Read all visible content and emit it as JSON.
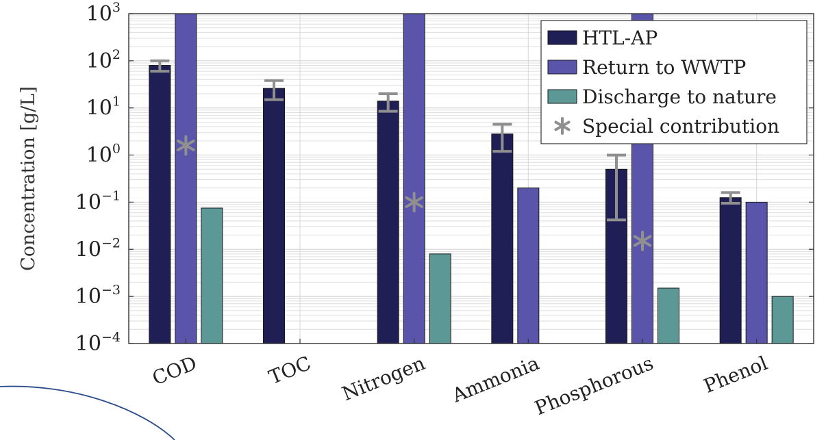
{
  "chart_data": {
    "type": "bar",
    "title": "",
    "xlabel": "",
    "ylabel": "Concentration [g/L]",
    "yscale": "log",
    "ylim": [
      0.0001,
      1000
    ],
    "ytick_base": "10",
    "ytick_exponents": [
      "−4",
      "−3",
      "−2",
      "−1",
      "0",
      "1",
      "2",
      "3"
    ],
    "grid": true,
    "legend_position": "top-right",
    "categories": [
      "COD",
      "TOC",
      "Nitrogen",
      "Ammonia",
      "Phosphorous",
      "Phenol"
    ],
    "series": [
      {
        "name": "HTL-AP",
        "color": "#1f1e55",
        "values": [
          80,
          26,
          14,
          2.8,
          0.5,
          0.125
        ],
        "error_low": [
          60,
          15,
          8.5,
          1.2,
          0.042,
          0.095
        ],
        "error_high": [
          100,
          38,
          20,
          4.5,
          1.0,
          0.16
        ]
      },
      {
        "name": "Return to WWTP",
        "color": "#5a55aa",
        "values": [
          1000,
          null,
          1000,
          0.2,
          1000,
          0.1
        ]
      },
      {
        "name": "Discharge to nature",
        "color": "#5c9896",
        "values": [
          0.075,
          null,
          0.008,
          null,
          0.0015,
          0.001
        ]
      }
    ],
    "special_contribution": {
      "name": "Special contribution",
      "color": "#909090",
      "values": [
        1.6,
        null,
        0.1,
        null,
        0.015,
        null
      ]
    }
  }
}
